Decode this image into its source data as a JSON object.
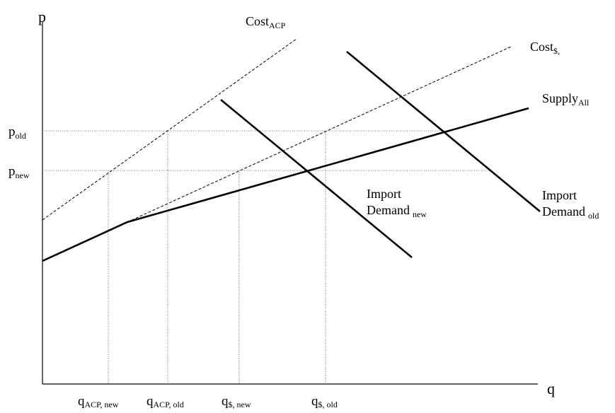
{
  "axes": {
    "y_label": "p",
    "x_label": "q"
  },
  "price_labels": {
    "old": {
      "main": "p",
      "sub": "old"
    },
    "new": {
      "main": "p",
      "sub": "new"
    }
  },
  "quantity_labels": {
    "acp_new": {
      "main": "q",
      "sub": "ACP, new"
    },
    "acp_old": {
      "main": "q",
      "sub": "ACP, old"
    },
    "usd_new": {
      "main": "q",
      "sub": "$, new"
    },
    "usd_old": {
      "main": "q",
      "sub": "$, old"
    }
  },
  "curves": {
    "cost_acp": {
      "main": "Cost",
      "sub": "ACP"
    },
    "cost_usd": {
      "main": "Cost",
      "sub": "$,"
    },
    "supply_all": {
      "main": "Supply",
      "sub": "All"
    },
    "demand_new": {
      "line1": "Import",
      "line2": "Demand",
      "sub": "new"
    },
    "demand_old": {
      "line1": "Import",
      "line2": "Demand",
      "sub": "old"
    }
  },
  "colors": {
    "line": "#000000",
    "guide": "#555555"
  }
}
